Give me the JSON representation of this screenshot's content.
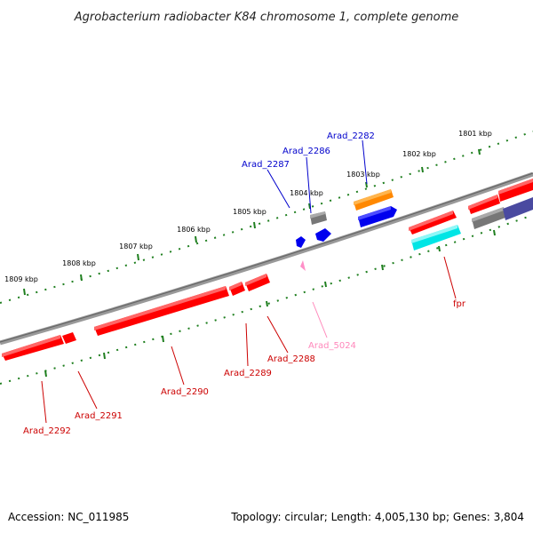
{
  "title": "Agrobacterium radiobacter K84 chromosome 1, complete genome",
  "footer": {
    "accession": "Accession: NC_011985",
    "summary": "Topology: circular; Length: 4,005,130 bp; Genes: 3,804"
  },
  "ticks": [
    "1801 kbp",
    "1802 kbp",
    "1803 kbp",
    "1804 kbp",
    "1805 kbp",
    "1806 kbp",
    "1807 kbp",
    "1808 kbp",
    "1809 kbp"
  ],
  "gene_labels": {
    "top": [
      "Arad_2282",
      "Arad_2286",
      "Arad_2287"
    ],
    "bottom": [
      "fpr",
      "Arad_5024",
      "Arad_2288",
      "Arad_2289",
      "Arad_2290",
      "Arad_2291",
      "Arad_2292"
    ]
  },
  "colors": {
    "red": "#ff0000",
    "blue": "#0000ee",
    "orange": "#ff8800",
    "gray": "#777777",
    "cyan": "#00e5e5",
    "pink": "#ff8fc8",
    "navy": "#4a4aa0",
    "tick_green": "#1f7f1f",
    "label_red": "#cc0000",
    "label_blue": "#0000cc",
    "label_pink": "#ff88bb"
  }
}
